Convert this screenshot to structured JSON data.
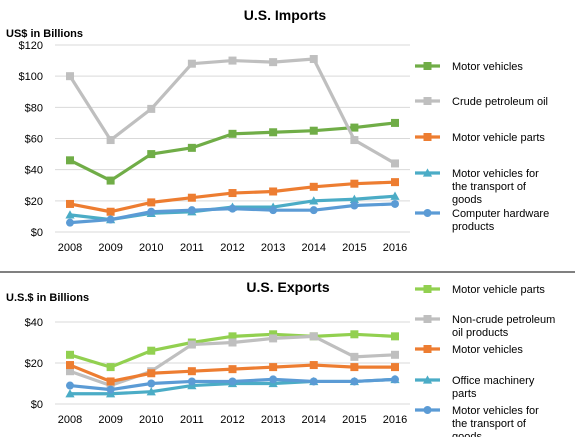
{
  "chart_data": [
    {
      "type": "line",
      "title": "U.S. Imports",
      "ylabel": "US$ in Billions",
      "x": [
        "2008",
        "2009",
        "2010",
        "2011",
        "2012",
        "2013",
        "2014",
        "2015",
        "2016"
      ],
      "ylim": [
        0,
        120
      ],
      "yticks": [
        0,
        20,
        40,
        60,
        80,
        100,
        120
      ],
      "ytick_labels": [
        "$0",
        "$20",
        "$40",
        "$60",
        "$80",
        "$100",
        "$120"
      ],
      "grid": true,
      "legend_position": "right",
      "series": [
        {
          "name": "Motor vehicles",
          "color": "#70ad47",
          "marker": "square",
          "values": [
            46,
            33,
            50,
            54,
            63,
            64,
            65,
            67,
            70
          ]
        },
        {
          "name": "Crude petroleum oil",
          "color": "#bfbfbf",
          "marker": "square",
          "values": [
            100,
            59,
            79,
            108,
            110,
            109,
            111,
            59,
            44
          ]
        },
        {
          "name": "Motor vehicle parts",
          "color": "#ed7d31",
          "marker": "square",
          "values": [
            18,
            13,
            19,
            22,
            25,
            26,
            29,
            31,
            32
          ]
        },
        {
          "name": "Motor vehicles for the transport of goods",
          "color": "#4bacc6",
          "marker": "triangle",
          "values": [
            11,
            8,
            12,
            13,
            16,
            16,
            20,
            21,
            23
          ]
        },
        {
          "name": "Computer hardware products",
          "color": "#5b9bd5",
          "marker": "circle",
          "values": [
            6,
            8,
            13,
            14,
            15,
            14,
            14,
            17,
            18
          ]
        }
      ]
    },
    {
      "type": "line",
      "title": "U.S. Exports",
      "ylabel": "U.S.$ in Billions",
      "x": [
        "2008",
        "2009",
        "2010",
        "2011",
        "2012",
        "2013",
        "2014",
        "2015",
        "2016"
      ],
      "ylim": [
        0,
        40
      ],
      "yticks": [
        0,
        20,
        40
      ],
      "ytick_labels": [
        "$0",
        "$20",
        "$40"
      ],
      "grid": true,
      "legend_position": "right",
      "series": [
        {
          "name": "Motor vehicle parts",
          "color": "#92d050",
          "marker": "square",
          "values": [
            24,
            18,
            26,
            30,
            33,
            34,
            33,
            34,
            33
          ]
        },
        {
          "name": "Non-crude petroleum oil products",
          "color": "#bfbfbf",
          "marker": "square",
          "values": [
            16,
            9,
            16,
            29,
            30,
            32,
            33,
            23,
            24
          ]
        },
        {
          "name": "Motor vehicles",
          "color": "#ed7d31",
          "marker": "square",
          "values": [
            19,
            11,
            15,
            16,
            17,
            18,
            19,
            18,
            18
          ]
        },
        {
          "name": "Office machinery parts",
          "color": "#4bacc6",
          "marker": "triangle",
          "values": [
            5,
            5,
            6,
            9,
            10,
            10,
            11,
            11,
            12
          ]
        },
        {
          "name": "Motor vehicles for the transport of goods",
          "color": "#5b9bd5",
          "marker": "circle",
          "values": [
            9,
            7,
            10,
            11,
            11,
            12,
            11,
            11,
            12
          ]
        }
      ]
    }
  ]
}
